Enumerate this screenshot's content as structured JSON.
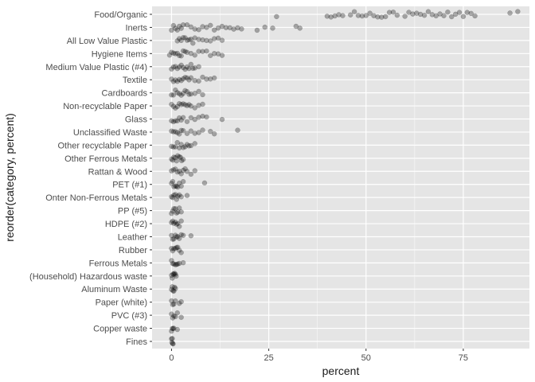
{
  "chart_data": {
    "type": "scatter",
    "title": "",
    "xlabel": "percent",
    "ylabel": "reorder(category, percent)",
    "xlim": [
      -5,
      92
    ],
    "xticks": [
      0,
      25,
      50,
      75
    ],
    "x_tick_labels": [
      "0",
      "25",
      "50",
      "75"
    ],
    "grid": true,
    "panel_background": "#e5e5e5",
    "gridline_color": "#ffffff",
    "point_color": "#000000",
    "point_alpha": 0.3,
    "jitter": true,
    "categories_top_to_bottom": [
      "Food/Organic",
      "Inerts",
      "All Low Value Plastic",
      "Hygiene Items",
      "Medium Value Plastic (#4)",
      "Textile",
      "Cardboards",
      "Non-recyclable Paper",
      "Glass",
      "Unclassified Waste",
      "Other recyclable Paper",
      "Other Ferrous Metals",
      "Rattan & Wood",
      "PET (#1)",
      "Onter Non-Ferrous Metals",
      "PP (#5)",
      "HDPE (#2)",
      "Leather",
      "Rubber",
      "Ferrous Metals",
      "(Household) Hazardous waste",
      "Aluminum Waste",
      "Paper (white)",
      "PVC (#3)",
      "Copper waste",
      "Fines"
    ],
    "series": [
      {
        "category": "Food/Organic",
        "values": [
          27,
          40,
          41,
          42,
          43,
          44,
          46,
          47,
          48,
          49,
          50,
          51,
          52,
          53,
          54,
          55,
          56,
          57,
          58,
          60,
          61,
          62,
          63,
          64,
          65,
          66,
          67,
          68,
          69,
          70,
          71,
          72,
          73,
          74,
          75,
          76,
          77,
          78,
          87,
          89
        ]
      },
      {
        "category": "Inerts",
        "values": [
          0,
          0.5,
          1,
          1.5,
          2,
          2.5,
          3,
          4,
          5,
          6,
          7,
          8,
          9,
          10,
          11,
          12,
          13,
          14,
          15,
          16,
          17,
          18,
          22,
          24,
          26,
          32,
          33
        ]
      },
      {
        "category": "All Low Value Plastic",
        "values": [
          1.5,
          2,
          2.5,
          3,
          3.5,
          4,
          4.5,
          5,
          5.5,
          6,
          7,
          8,
          9,
          10,
          11,
          12,
          13
        ]
      },
      {
        "category": "Hygiene Items",
        "values": [
          -0.5,
          0,
          0.5,
          1,
          1.5,
          2,
          2.5,
          3,
          3.5,
          4,
          5,
          6,
          7,
          8,
          9,
          10,
          11,
          12,
          13
        ]
      },
      {
        "category": "Medium Value Plastic (#4)",
        "values": [
          0,
          0.5,
          1,
          1.5,
          2,
          2.5,
          3,
          3.5,
          4,
          4.5,
          5,
          5.5,
          6,
          7
        ]
      },
      {
        "category": "Textile",
        "values": [
          0,
          0.5,
          1,
          1.5,
          2,
          2.5,
          3,
          3.5,
          4,
          4.5,
          5,
          6,
          7,
          8,
          9,
          10,
          11
        ]
      },
      {
        "category": "Cardboards",
        "values": [
          0,
          0.5,
          1,
          1.5,
          2,
          2.5,
          3,
          3.5,
          4,
          4.5,
          5,
          6,
          7,
          8
        ]
      },
      {
        "category": "Non-recyclable Paper",
        "values": [
          0,
          0.5,
          1,
          1.5,
          2,
          2.5,
          3,
          3.5,
          4,
          4.5,
          5,
          6,
          7,
          8
        ]
      },
      {
        "category": "Glass",
        "values": [
          0,
          0.5,
          1,
          1.5,
          2,
          2.5,
          3,
          4,
          5,
          6,
          7,
          8,
          9,
          13
        ]
      },
      {
        "category": "Unclassified Waste",
        "values": [
          0,
          0.5,
          1,
          1.5,
          2,
          2.5,
          3,
          4,
          5,
          6,
          7,
          8,
          10,
          11,
          17
        ]
      },
      {
        "category": "Other recyclable Paper",
        "values": [
          0,
          0.5,
          1,
          1.5,
          2,
          2.5,
          3,
          3.5,
          4,
          4.5,
          5,
          6
        ]
      },
      {
        "category": "Other Ferrous Metals",
        "values": [
          0,
          0.3,
          0.6,
          1,
          1.3,
          1.6,
          2,
          2.3,
          2.6,
          3
        ]
      },
      {
        "category": "Rattan & Wood",
        "values": [
          0,
          0.5,
          1,
          1.5,
          2,
          2.5,
          3,
          3.5,
          4,
          5,
          6
        ]
      },
      {
        "category": "PET (#1)",
        "values": [
          0,
          0.3,
          0.6,
          1,
          1.3,
          1.6,
          2,
          2.5,
          3,
          8.5
        ]
      },
      {
        "category": "Onter Non-Ferrous Metals",
        "values": [
          0,
          0.3,
          0.6,
          1,
          1.3,
          1.6,
          2,
          2.5,
          4
        ]
      },
      {
        "category": "PP (#5)",
        "values": [
          0,
          0.3,
          0.6,
          1,
          1.3,
          1.6,
          2,
          2.5
        ]
      },
      {
        "category": "HDPE (#2)",
        "values": [
          0,
          0.3,
          0.6,
          1,
          1.3,
          1.6,
          2,
          2.5
        ]
      },
      {
        "category": "Leather",
        "values": [
          0,
          0.3,
          0.6,
          1,
          1.3,
          1.6,
          2,
          2.5,
          3,
          5
        ]
      },
      {
        "category": "Rubber",
        "values": [
          0,
          0.3,
          0.6,
          1,
          1.3,
          1.6,
          2,
          2.5
        ]
      },
      {
        "category": "Ferrous Metals",
        "values": [
          0,
          0.3,
          0.6,
          1,
          1.3,
          1.6,
          2,
          3
        ]
      },
      {
        "category": "(Household) Hazardous waste",
        "values": [
          0,
          0.2,
          0.4,
          0.6,
          0.8,
          1,
          1.2
        ]
      },
      {
        "category": "Aluminum Waste",
        "values": [
          0,
          0.2,
          0.4,
          0.6,
          0.8,
          1
        ]
      },
      {
        "category": "Paper (white)",
        "values": [
          0,
          0.3,
          0.6,
          1,
          2,
          2.5
        ]
      },
      {
        "category": "PVC (#3)",
        "values": [
          0,
          0.3,
          0.6,
          1,
          1.5,
          2.5
        ]
      },
      {
        "category": "Copper waste",
        "values": [
          0,
          0.2,
          0.4,
          0.6,
          1.5
        ]
      },
      {
        "category": "Fines",
        "values": [
          0,
          0.1,
          0.2,
          0.3,
          0.4
        ]
      }
    ]
  }
}
